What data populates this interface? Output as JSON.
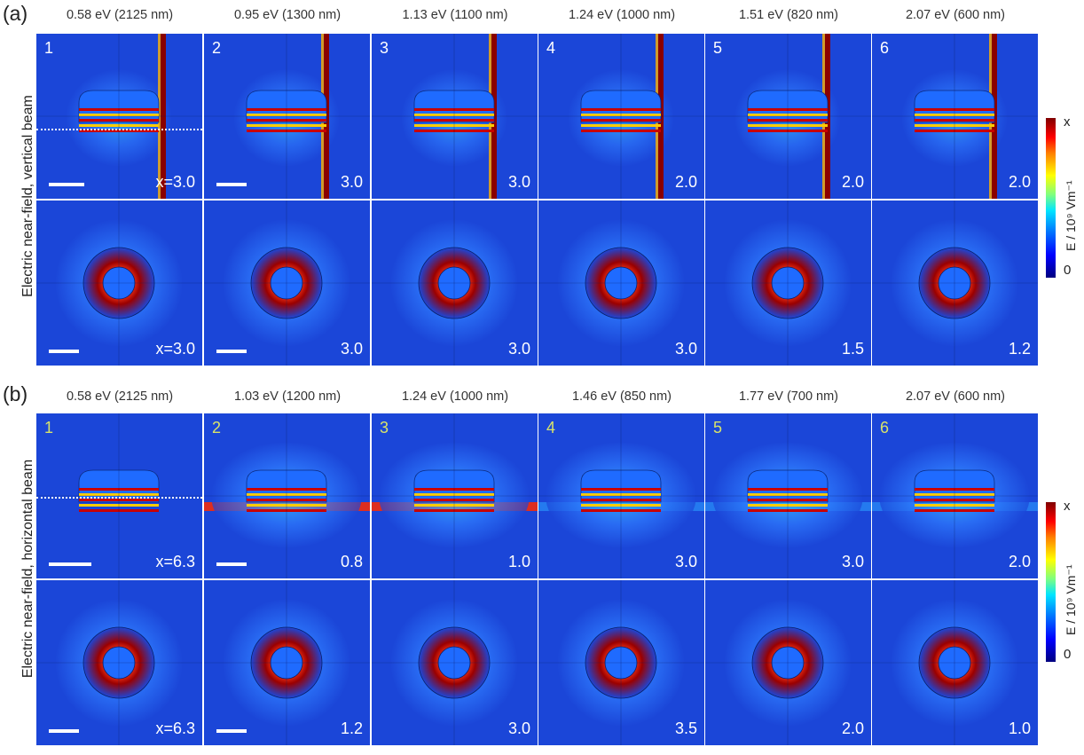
{
  "panels": [
    {
      "label": "(a)",
      "ylabel": "Electric near-field, vertical beam",
      "energies": [
        "0.58 eV (2125 nm)",
        "0.95 eV (1300 nm)",
        "1.13 eV (1100 nm)",
        "1.24 eV (1000 nm)",
        "1.51 eV (820 nm)",
        "2.07 eV (600 nm)"
      ],
      "numbers": [
        "1",
        "2",
        "3",
        "4",
        "5",
        "6"
      ],
      "top_scales": [
        "x=3.0",
        "3.0",
        "3.0",
        "2.0",
        "2.0",
        "2.0"
      ],
      "bottom_scales": [
        "x=3.0",
        "3.0",
        "3.0",
        "3.0",
        "1.5",
        "1.2"
      ]
    },
    {
      "label": "(b)",
      "ylabel": "Electric near-field, horizontal beam",
      "energies": [
        "0.58 eV (2125 nm)",
        "1.03 eV (1200 nm)",
        "1.24 eV (1000 nm)",
        "1.46 eV (850 nm)",
        "1.77 eV (700 nm)",
        "2.07 eV (600 nm)"
      ],
      "numbers": [
        "1",
        "2",
        "3",
        "4",
        "5",
        "6"
      ],
      "top_scales": [
        "x=6.3",
        "0.8",
        "1.0",
        "3.0",
        "3.0",
        "2.0"
      ],
      "bottom_scales": [
        "x=6.3",
        "1.2",
        "3.0",
        "3.5",
        "2.0",
        "1.0"
      ]
    }
  ],
  "colorbar": {
    "max": "x",
    "min": "0",
    "title": "E / 10⁹ Vm⁻¹"
  },
  "colors": {
    "field_background": "#1b46d8",
    "number_yellow": "#d8e36a"
  }
}
